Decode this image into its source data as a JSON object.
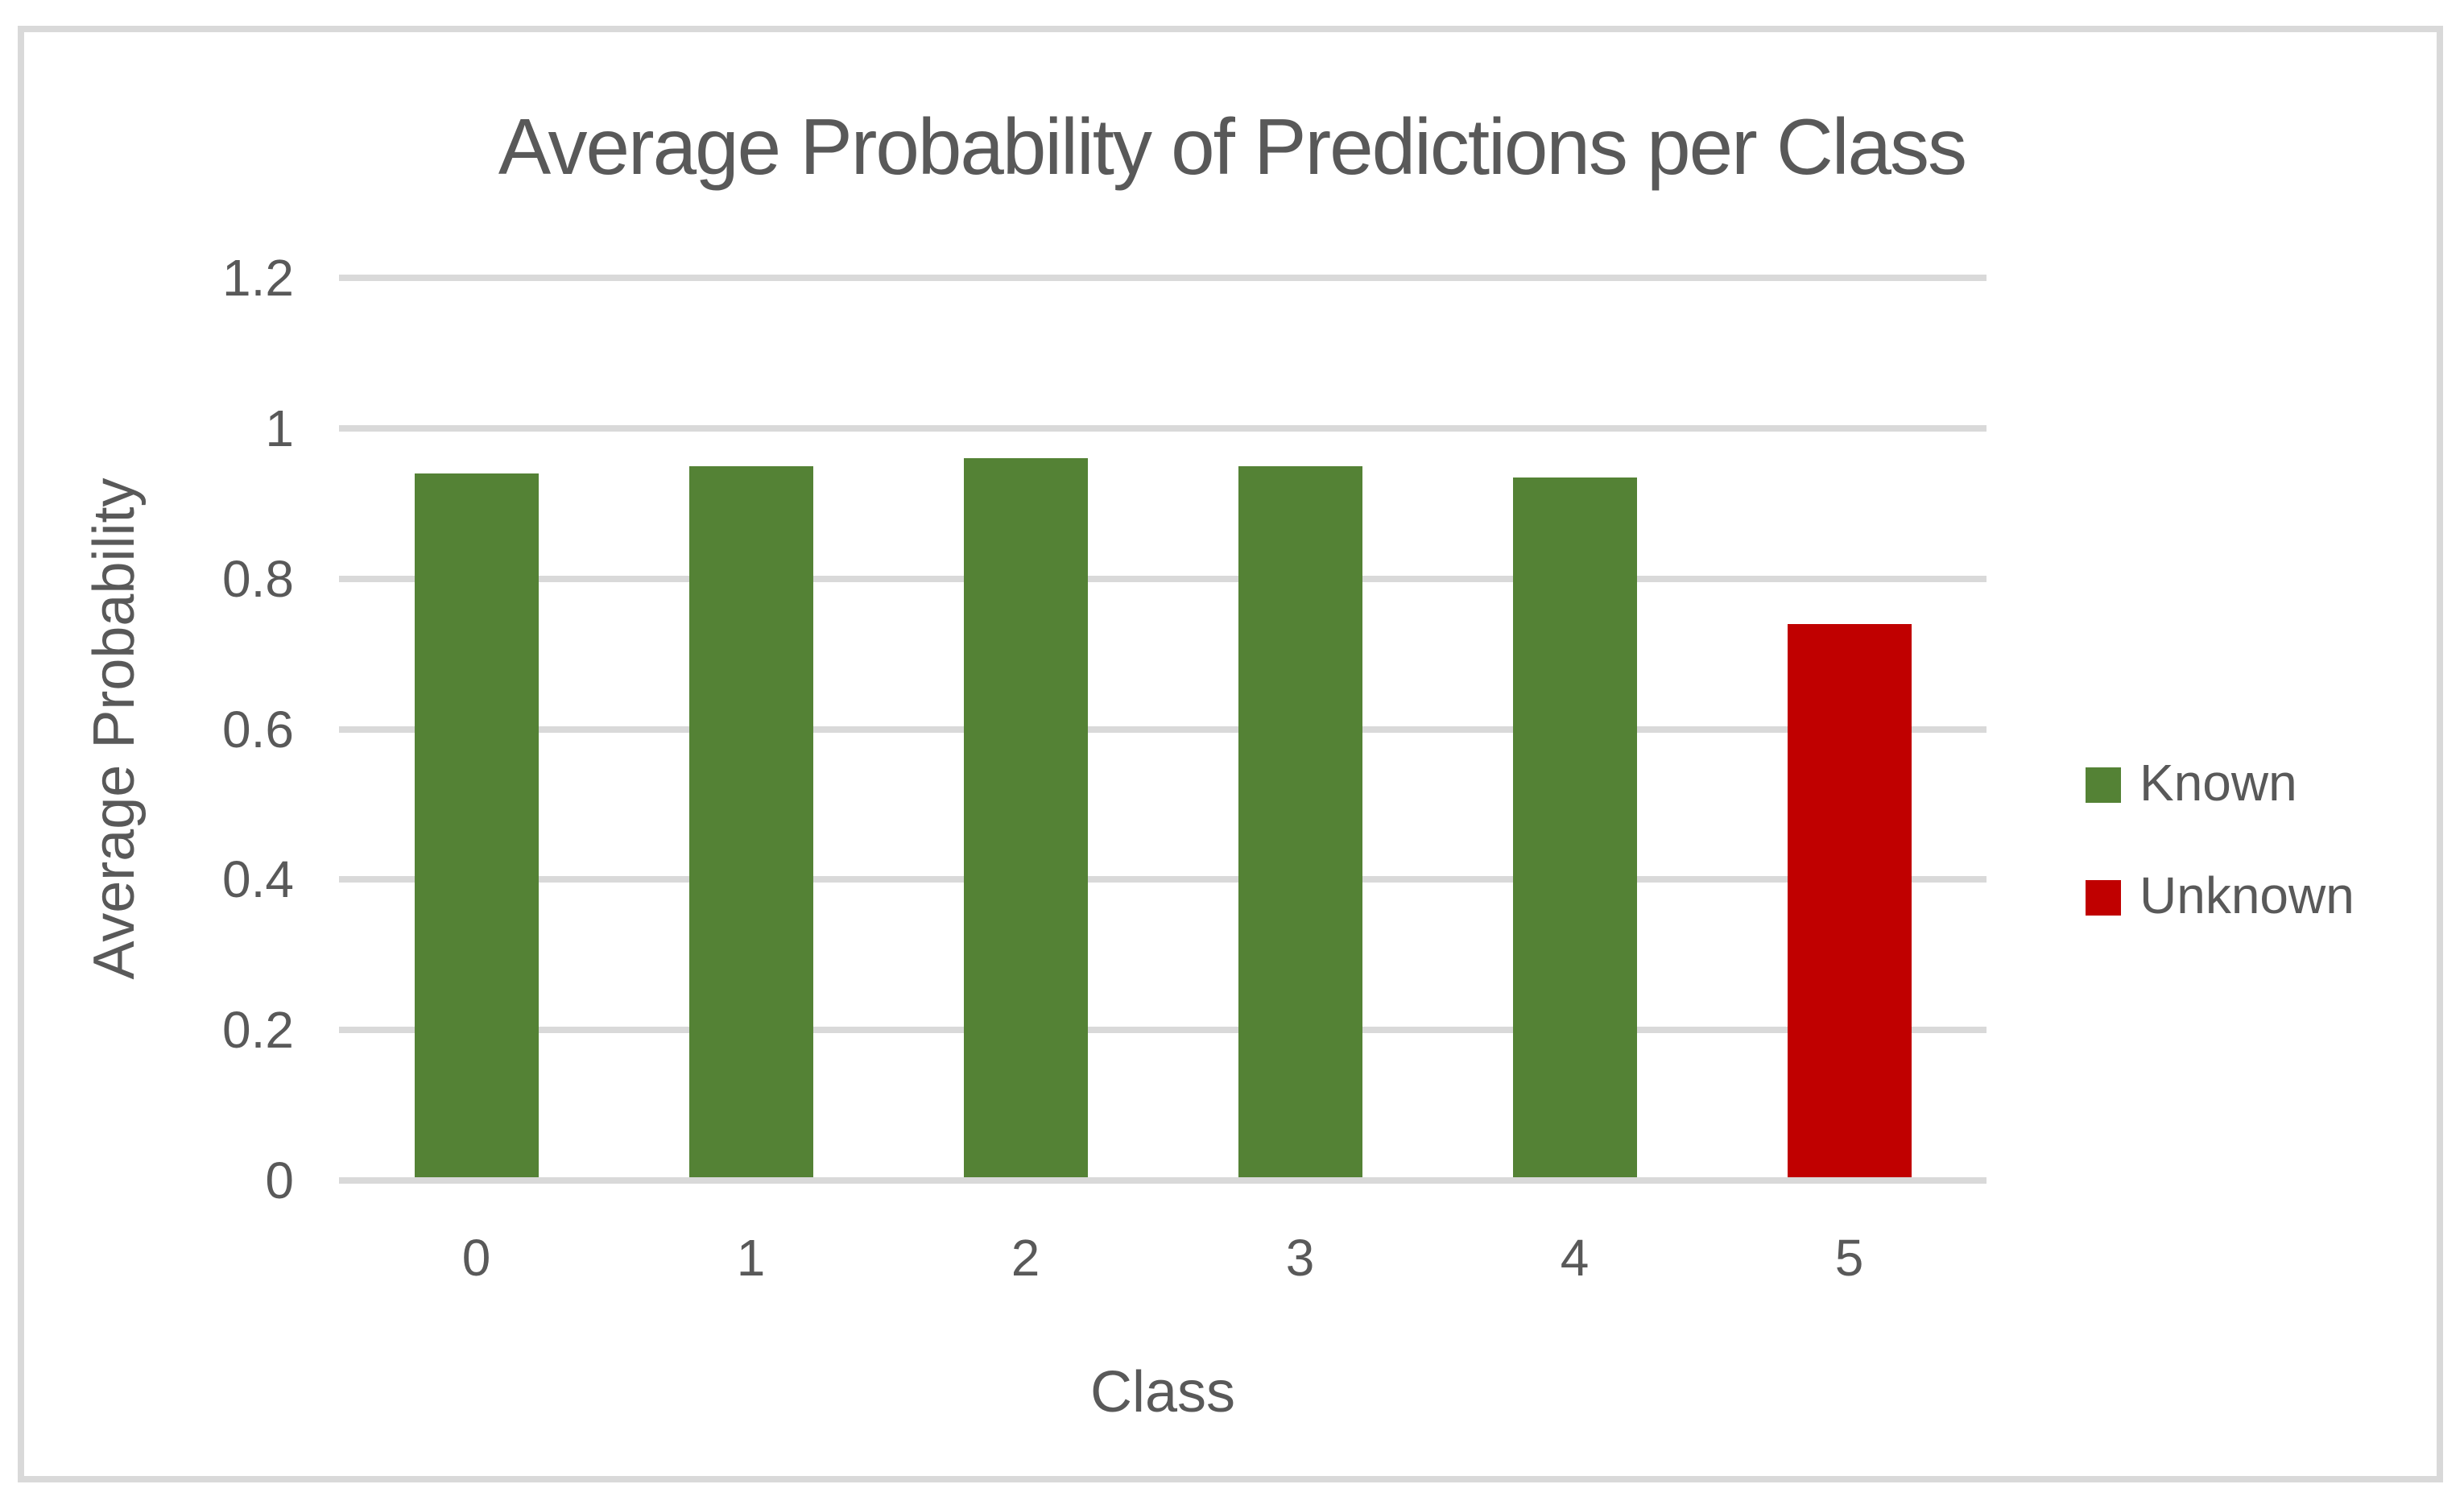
{
  "chart_data": {
    "type": "bar",
    "title": "Average Probability of Predictions per Class",
    "xlabel": "Class",
    "ylabel": "Average Probability",
    "categories": [
      "0",
      "1",
      "2",
      "3",
      "4",
      "5"
    ],
    "series": [
      {
        "name": "Known",
        "color": "#548235",
        "values": [
          0.94,
          0.95,
          0.96,
          0.95,
          0.935,
          null
        ]
      },
      {
        "name": "Unknown",
        "color": "#c00000",
        "values": [
          null,
          null,
          null,
          null,
          null,
          0.74
        ]
      }
    ],
    "y_ticks": [
      0,
      0.2,
      0.4,
      0.6,
      0.8,
      1,
      1.2
    ],
    "y_tick_labels": [
      "0",
      "0.2",
      "0.4",
      "0.6",
      "0.8",
      "1",
      "1.2"
    ],
    "ylim": [
      0,
      1.2
    ],
    "grid": "horizontal-only",
    "legend_position": "right-middle",
    "colors": {
      "text": "#595959",
      "gridline": "#d9d9d9",
      "panel_border": "#d9d9d9",
      "background": "#ffffff",
      "known_green": "#548235",
      "unknown_red": "#c00000"
    }
  },
  "legend": {
    "items": [
      {
        "label": "Known",
        "color": "#548235"
      },
      {
        "label": "Unknown",
        "color": "#c00000"
      }
    ]
  }
}
